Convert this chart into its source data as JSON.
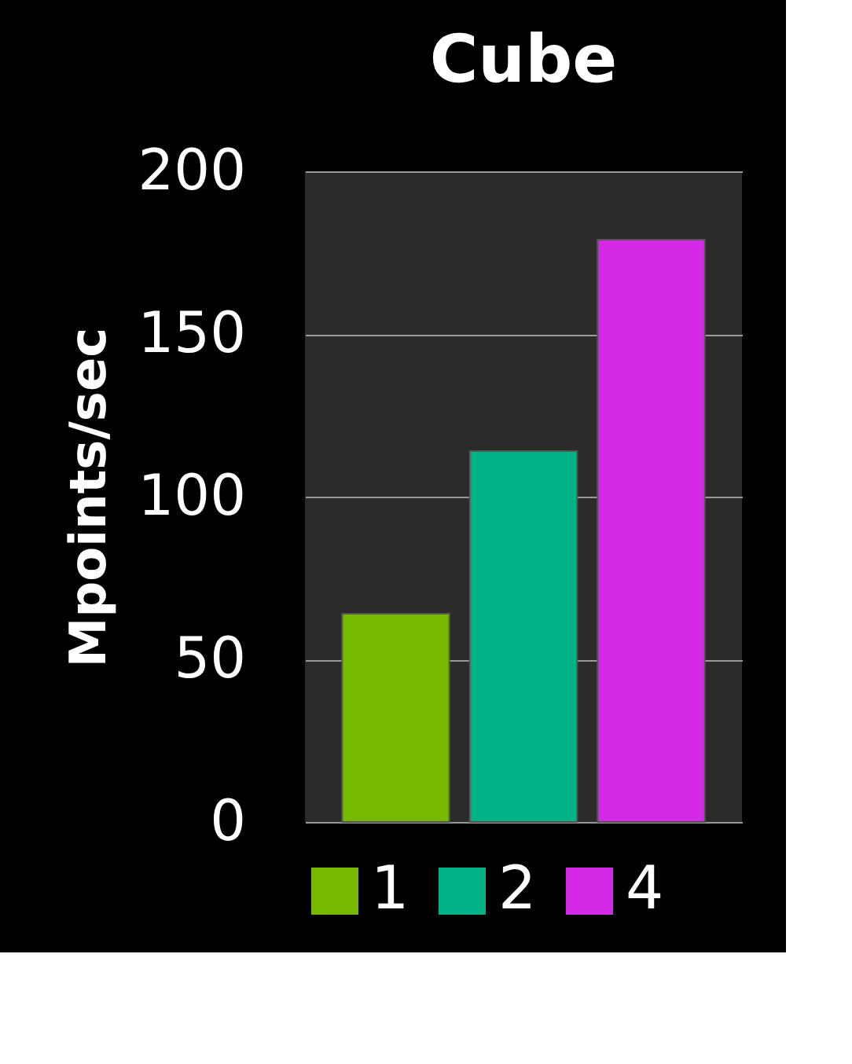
{
  "chart_data": {
    "type": "bar",
    "title": "Cube",
    "ylabel": "Mpoints/sec",
    "categories": [
      null
    ],
    "series": [
      {
        "name": "1",
        "color": "#76b900",
        "values": [
          64
        ]
      },
      {
        "name": "2",
        "color": "#00b386",
        "values": [
          114
        ]
      },
      {
        "name": "4",
        "color": "#d42ae8",
        "values": [
          179
        ]
      }
    ],
    "ylim": [
      0,
      200
    ],
    "yticks": [
      0,
      50,
      100,
      150,
      200
    ],
    "grid": "y",
    "legend": "bottom",
    "tick_labels": "y"
  }
}
